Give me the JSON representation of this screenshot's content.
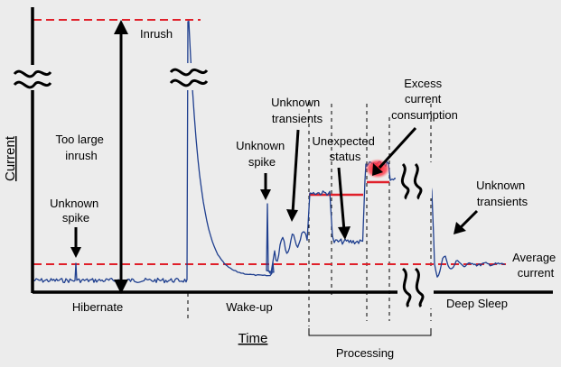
{
  "axes": {
    "y_title": "Current",
    "x_title": "Time"
  },
  "labels": {
    "inrush": "Inrush",
    "too_large_inrush": [
      "Too large",
      "inrush"
    ],
    "unknown_spike_left": [
      "Unknown",
      "spike"
    ],
    "unknown_spike_mid": [
      "Unknown",
      "spike"
    ],
    "unknown_transients_mid": [
      "Unknown",
      "transients"
    ],
    "unexpected_status": [
      "Unexpected",
      "status"
    ],
    "excess_current": [
      "Excess",
      "current",
      "consumption"
    ],
    "unknown_transients_right": [
      "Unknown",
      "transients"
    ],
    "average_current": [
      "Average",
      "current"
    ]
  },
  "phases": {
    "hibernate": "Hibernate",
    "wake_up": "Wake-up",
    "deep_sleep": "Deep Sleep",
    "processing": "Processing"
  },
  "colors": {
    "signal": "#1f3f8f",
    "reference": "#e0202a",
    "hotspot": "#f03040",
    "axis": "#000000"
  }
}
